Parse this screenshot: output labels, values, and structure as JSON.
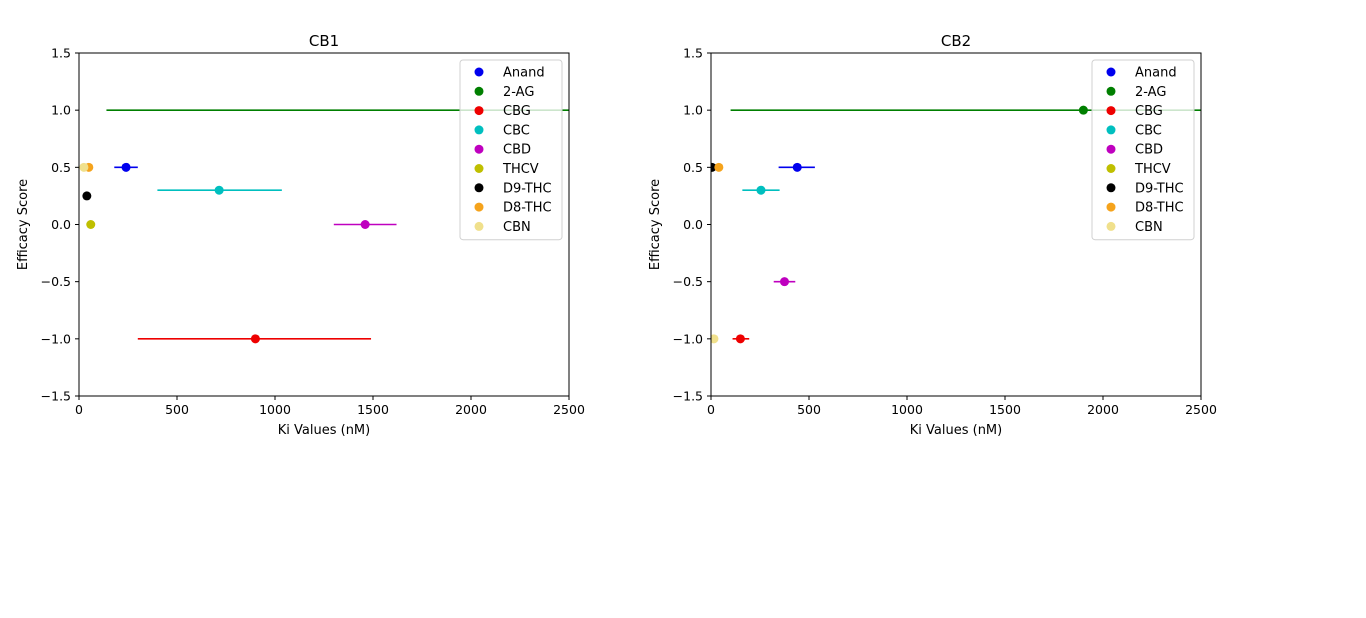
{
  "chart_data": [
    {
      "type": "scatter",
      "title": "CB1",
      "xlabel": "Ki Values (nM)",
      "ylabel": "Efficacy Score",
      "xlim": [
        0,
        2500
      ],
      "ylim": [
        -1.5,
        1.5
      ],
      "xticks": [
        0,
        500,
        1000,
        1500,
        2000,
        2500
      ],
      "xtick_labels": [
        "0",
        "500",
        "1000",
        "1500",
        "2000",
        "2500"
      ],
      "yticks": [
        1.5,
        1.0,
        0.5,
        0.0,
        -0.5,
        -1.0,
        -1.5
      ],
      "ytick_labels": [
        "1.5",
        "1.0",
        "0.5",
        "0.0",
        "−0.5",
        "−1.0",
        "−1.5"
      ],
      "grid": false,
      "legend_position": "upper right",
      "series": [
        {
          "name": "Anand",
          "color": "#0000ee",
          "x": 240,
          "y": 0.5,
          "xerr": [
            180,
            300
          ]
        },
        {
          "name": "2-AG",
          "color": "#007f00",
          "x": null,
          "y": 1.0,
          "xerr": [
            140,
            2500
          ]
        },
        {
          "name": "CBG",
          "color": "#ee0000",
          "x": 900,
          "y": -1.0,
          "xerr": [
            300,
            1490
          ]
        },
        {
          "name": "CBC",
          "color": "#00bfbf",
          "x": 715,
          "y": 0.3,
          "xerr": [
            400,
            1035
          ]
        },
        {
          "name": "CBD",
          "color": "#bf00bf",
          "x": 1460,
          "y": 0.0,
          "xerr": [
            1300,
            1620
          ]
        },
        {
          "name": "THCV",
          "color": "#bfbf00",
          "x": 60,
          "y": 0.0,
          "xerr": null
        },
        {
          "name": "D9-THC",
          "color": "#000000",
          "x": 40,
          "y": 0.25,
          "xerr": null
        },
        {
          "name": "D8-THC",
          "color": "#f5a31c",
          "x": 50,
          "y": 0.5,
          "xerr": null
        },
        {
          "name": "CBN",
          "color": "#f0e08c",
          "x": 25,
          "y": 0.5,
          "xerr": null
        }
      ]
    },
    {
      "type": "scatter",
      "title": "CB2",
      "xlabel": "Ki Values (nM)",
      "ylabel": "Efficacy Score",
      "xlim": [
        0,
        2500
      ],
      "ylim": [
        -1.5,
        1.5
      ],
      "xticks": [
        0,
        500,
        1000,
        1500,
        2000,
        2500
      ],
      "xtick_labels": [
        "0",
        "500",
        "1000",
        "1500",
        "2000",
        "2500"
      ],
      "yticks": [
        1.5,
        1.0,
        0.5,
        0.0,
        -0.5,
        -1.0,
        -1.5
      ],
      "ytick_labels": [
        "1.5",
        "1.0",
        "0.5",
        "0.0",
        "−0.5",
        "−1.0",
        "−1.5"
      ],
      "grid": false,
      "legend_position": "upper right",
      "series": [
        {
          "name": "Anand",
          "color": "#0000ee",
          "x": 440,
          "y": 0.5,
          "xerr": [
            345,
            530
          ]
        },
        {
          "name": "2-AG",
          "color": "#007f00",
          "x": 1900,
          "y": 1.0,
          "xerr": [
            100,
            2500
          ]
        },
        {
          "name": "CBG",
          "color": "#ee0000",
          "x": 150,
          "y": -1.0,
          "xerr": [
            110,
            195
          ]
        },
        {
          "name": "CBC",
          "color": "#00bfbf",
          "x": 255,
          "y": 0.3,
          "xerr": [
            160,
            350
          ]
        },
        {
          "name": "CBD",
          "color": "#bf00bf",
          "x": 375,
          "y": -0.5,
          "xerr": [
            320,
            430
          ]
        },
        {
          "name": "THCV",
          "color": "#bfbf00",
          "x": null,
          "y": null,
          "xerr": null
        },
        {
          "name": "D9-THC",
          "color": "#000000",
          "x": 5,
          "y": 0.5,
          "xerr": null
        },
        {
          "name": "D8-THC",
          "color": "#f5a31c",
          "x": 40,
          "y": 0.5,
          "xerr": null
        },
        {
          "name": "CBN",
          "color": "#f0e08c",
          "x": 15,
          "y": -1.0,
          "xerr": null
        }
      ]
    }
  ]
}
